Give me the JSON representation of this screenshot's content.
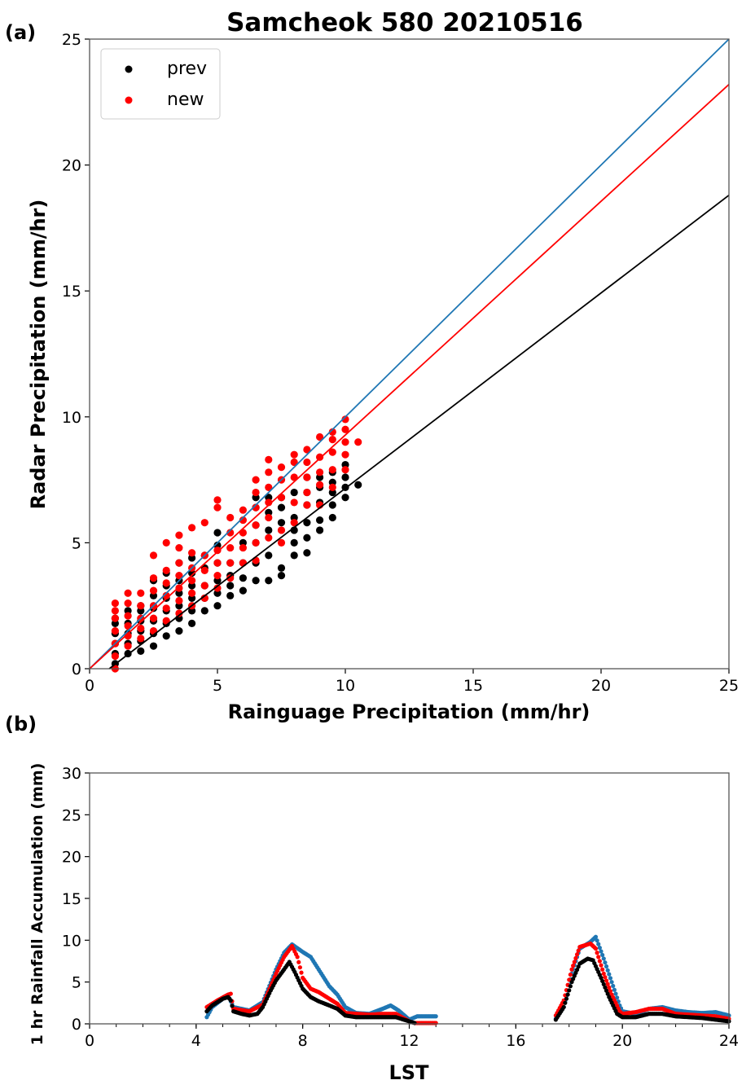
{
  "chart_data": [
    {
      "panel_label": "(a)",
      "type": "scatter",
      "title": "Samcheok 580 20210516",
      "xlabel": "Rainguage Precipitation (mm/hr)",
      "ylabel": "Radar Precipitation (mm/hr)",
      "xlim": [
        0,
        25
      ],
      "ylim": [
        0,
        25
      ],
      "xticks": [
        0,
        5,
        10,
        15,
        20,
        25
      ],
      "yticks": [
        0,
        5,
        10,
        15,
        20,
        25
      ],
      "grid": false,
      "legend": {
        "position": "top-left",
        "entries": [
          {
            "name": "prev",
            "color": "#000000"
          },
          {
            "name": "new",
            "color": "#ff0000"
          }
        ]
      },
      "series": [
        {
          "name": "prev",
          "color": "#000000",
          "columns": [
            {
              "x": 1,
              "y": [
                0.2,
                0.6,
                1.0,
                1.4,
                1.8,
                2.0
              ]
            },
            {
              "x": 1.5,
              "y": [
                0.6,
                1.0,
                1.4,
                1.8,
                2.3
              ]
            },
            {
              "x": 2,
              "y": [
                0.7,
                1.1,
                1.5,
                1.9,
                2.3,
                2.5
              ]
            },
            {
              "x": 2.5,
              "y": [
                0.9,
                1.4,
                1.9,
                2.4,
                2.9,
                3.5
              ]
            },
            {
              "x": 3,
              "y": [
                1.3,
                1.8,
                2.3,
                2.8,
                3.3,
                3.8
              ]
            },
            {
              "x": 3.5,
              "y": [
                1.5,
                2.0,
                2.5,
                3.0,
                3.5,
                4.2
              ]
            },
            {
              "x": 4,
              "y": [
                1.8,
                2.3,
                2.8,
                3.3,
                3.8,
                4.4
              ]
            },
            {
              "x": 4.5,
              "y": [
                2.3,
                2.8,
                3.3,
                4.0,
                4.5
              ]
            },
            {
              "x": 5,
              "y": [
                2.5,
                3.0,
                3.5,
                4.2,
                4.9,
                5.4
              ]
            },
            {
              "x": 5.5,
              "y": [
                2.9,
                3.3,
                3.7,
                4.2
              ]
            },
            {
              "x": 6,
              "y": [
                3.1,
                3.6,
                4.2,
                5.0
              ]
            },
            {
              "x": 6.5,
              "y": [
                3.5,
                4.2,
                5.0,
                5.7,
                6.4,
                6.8
              ]
            },
            {
              "x": 7,
              "y": [
                3.5,
                4.5,
                5.5,
                6.2,
                6.8
              ]
            },
            {
              "x": 7.5,
              "y": [
                3.7,
                4.0,
                5.8,
                6.4,
                6.8
              ]
            },
            {
              "x": 8,
              "y": [
                4.5,
                5.0,
                5.5,
                6.0,
                7.0
              ]
            },
            {
              "x": 8.5,
              "y": [
                4.6,
                5.2,
                5.8,
                6.5,
                7.0,
                7.6
              ]
            },
            {
              "x": 9,
              "y": [
                5.5,
                5.9,
                6.6,
                7.2,
                7.6
              ]
            },
            {
              "x": 9.5,
              "y": [
                6.0,
                6.5,
                7.0,
                7.4,
                7.8
              ]
            },
            {
              "x": 10,
              "y": [
                6.8,
                7.2,
                7.6,
                8.1
              ]
            },
            {
              "x": 10.5,
              "y": [
                7.3
              ]
            }
          ]
        },
        {
          "name": "new",
          "color": "#ff0000",
          "columns": [
            {
              "x": 1,
              "y": [
                0,
                0.5,
                1.0,
                1.5,
                2.0,
                2.3,
                2.6
              ]
            },
            {
              "x": 1.5,
              "y": [
                0.9,
                1.3,
                1.7,
                2.1,
                2.6,
                3.0
              ]
            },
            {
              "x": 2,
              "y": [
                1.2,
                1.6,
                2.0,
                2.5,
                3.0
              ]
            },
            {
              "x": 2.5,
              "y": [
                1.5,
                2.0,
                2.5,
                3.1,
                3.6,
                4.5
              ]
            },
            {
              "x": 3,
              "y": [
                1.9,
                2.4,
                2.9,
                3.4,
                3.9,
                5.0
              ]
            },
            {
              "x": 3.5,
              "y": [
                2.2,
                2.7,
                3.2,
                3.7,
                4.2,
                4.8,
                5.3
              ]
            },
            {
              "x": 4,
              "y": [
                2.5,
                3.0,
                3.5,
                4.0,
                4.6,
                5.6
              ]
            },
            {
              "x": 4.5,
              "y": [
                2.8,
                3.3,
                3.9,
                4.5,
                5.8
              ]
            },
            {
              "x": 5,
              "y": [
                3.2,
                3.7,
                4.2,
                4.7,
                6.4,
                6.7
              ]
            },
            {
              "x": 5.5,
              "y": [
                3.6,
                4.2,
                4.8,
                5.4,
                6.0
              ]
            },
            {
              "x": 6,
              "y": [
                4.2,
                4.8,
                5.4,
                5.9,
                6.3
              ]
            },
            {
              "x": 6.5,
              "y": [
                4.3,
                5.0,
                5.7,
                6.4,
                7.0,
                7.5
              ]
            },
            {
              "x": 7,
              "y": [
                5.2,
                6.0,
                6.6,
                7.2,
                7.8,
                8.3
              ]
            },
            {
              "x": 7.5,
              "y": [
                5.0,
                5.5,
                6.8,
                7.5,
                8.0
              ]
            },
            {
              "x": 8,
              "y": [
                5.8,
                6.6,
                7.6,
                8.2,
                8.5
              ]
            },
            {
              "x": 8.5,
              "y": [
                6.5,
                7.0,
                7.6,
                8.2,
                8.7
              ]
            },
            {
              "x": 9,
              "y": [
                6.5,
                7.3,
                7.8,
                8.4,
                9.2
              ]
            },
            {
              "x": 9.5,
              "y": [
                7.2,
                7.9,
                8.6,
                9.1,
                9.4
              ]
            },
            {
              "x": 10,
              "y": [
                7.9,
                8.5,
                9.0,
                9.5,
                9.9
              ]
            },
            {
              "x": 10.5,
              "y": [
                9.0
              ]
            }
          ]
        }
      ],
      "lines": [
        {
          "color": "#1f77b4",
          "x": [
            0,
            25
          ],
          "y": [
            0,
            25
          ]
        },
        {
          "color": "#ff0000",
          "x": [
            0,
            25
          ],
          "y": [
            0,
            23.2
          ]
        },
        {
          "color": "#000000",
          "x": [
            0.77,
            25
          ],
          "y": [
            0,
            18.8
          ]
        }
      ]
    },
    {
      "panel_label": "(b)",
      "type": "scatter",
      "xlabel": "LST",
      "ylabel": "1 hr Rainfall Accumulation (mm)",
      "xlim": [
        0,
        24
      ],
      "ylim": [
        0,
        30
      ],
      "xticks": [
        0,
        4,
        8,
        12,
        16,
        20,
        24
      ],
      "yticks": [
        0,
        5,
        10,
        15,
        20,
        25,
        30
      ],
      "grid": false,
      "series": [
        {
          "color": "#1f77b4",
          "segments": [
            [
              [
                4.4,
                0.8
              ],
              [
                4.6,
                2.0
              ],
              [
                5.0,
                3.0
              ],
              [
                5.2,
                3.4
              ],
              [
                5.4,
                2.0
              ],
              [
                6.0,
                1.6
              ],
              [
                6.5,
                2.6
              ],
              [
                7.0,
                6.5
              ],
              [
                7.3,
                8.5
              ],
              [
                7.6,
                9.5
              ],
              [
                8.0,
                8.6
              ],
              [
                8.3,
                8.0
              ],
              [
                8.6,
                6.5
              ],
              [
                9.0,
                4.5
              ],
              [
                9.3,
                3.5
              ],
              [
                9.6,
                2.0
              ],
              [
                10.0,
                1.3
              ],
              [
                10.5,
                1.2
              ],
              [
                11.0,
                1.8
              ],
              [
                11.3,
                2.2
              ],
              [
                11.6,
                1.6
              ],
              [
                12.0,
                0.5
              ],
              [
                12.3,
                0.9
              ],
              [
                13.0,
                0.9
              ]
            ],
            [
              [
                17.5,
                0.6
              ],
              [
                17.8,
                2.0
              ],
              [
                18.1,
                6.0
              ],
              [
                18.4,
                9.0
              ],
              [
                18.8,
                9.8
              ],
              [
                19.0,
                10.4
              ],
              [
                19.3,
                7.8
              ],
              [
                19.6,
                5.0
              ],
              [
                19.9,
                2.2
              ],
              [
                20.0,
                1.5
              ],
              [
                20.5,
                1.2
              ],
              [
                21.0,
                1.8
              ],
              [
                21.5,
                2.0
              ],
              [
                22.0,
                1.6
              ],
              [
                22.5,
                1.4
              ],
              [
                23.0,
                1.3
              ],
              [
                23.5,
                1.4
              ],
              [
                24.0,
                1.0
              ]
            ]
          ]
        },
        {
          "color": "#ff0000",
          "segments": [
            [
              [
                4.4,
                2.0
              ],
              [
                4.8,
                2.8
              ],
              [
                5.2,
                3.5
              ],
              [
                5.3,
                3.6
              ],
              [
                5.4,
                1.8
              ],
              [
                6.0,
                1.5
              ],
              [
                6.5,
                2.3
              ],
              [
                7.0,
                6.0
              ],
              [
                7.3,
                8.0
              ],
              [
                7.6,
                9.3
              ],
              [
                7.8,
                8.0
              ],
              [
                8.0,
                5.5
              ],
              [
                8.3,
                4.2
              ],
              [
                8.6,
                3.8
              ],
              [
                9.0,
                3.0
              ],
              [
                9.3,
                2.4
              ],
              [
                9.6,
                1.3
              ],
              [
                10.5,
                1.1
              ],
              [
                11.0,
                1.2
              ],
              [
                11.5,
                1.2
              ],
              [
                12.0,
                0.3
              ],
              [
                12.2,
                0.1
              ],
              [
                13.0,
                0.1
              ]
            ],
            [
              [
                17.5,
                1.0
              ],
              [
                17.8,
                2.8
              ],
              [
                18.1,
                6.5
              ],
              [
                18.4,
                9.2
              ],
              [
                18.8,
                9.6
              ],
              [
                19.0,
                9.0
              ],
              [
                19.3,
                6.0
              ],
              [
                19.6,
                3.5
              ],
              [
                19.9,
                1.5
              ],
              [
                20.0,
                1.2
              ],
              [
                20.5,
                1.4
              ],
              [
                21.0,
                1.8
              ],
              [
                21.5,
                1.8
              ],
              [
                22.0,
                1.2
              ],
              [
                22.5,
                1.1
              ],
              [
                23.0,
                1.0
              ],
              [
                23.5,
                0.9
              ],
              [
                24.0,
                0.6
              ]
            ]
          ]
        },
        {
          "color": "#000000",
          "segments": [
            [
              [
                4.4,
                1.5
              ],
              [
                4.6,
                2.2
              ],
              [
                4.8,
                2.6
              ],
              [
                5.0,
                3.0
              ],
              [
                5.2,
                3.2
              ],
              [
                5.3,
                2.8
              ],
              [
                5.4,
                1.5
              ],
              [
                5.7,
                1.2
              ],
              [
                6.0,
                1.0
              ],
              [
                6.3,
                1.2
              ],
              [
                6.5,
                2.0
              ],
              [
                6.8,
                4.0
              ],
              [
                7.0,
                5.2
              ],
              [
                7.3,
                6.5
              ],
              [
                7.5,
                7.4
              ],
              [
                7.7,
                6.2
              ],
              [
                8.0,
                4.2
              ],
              [
                8.3,
                3.2
              ],
              [
                8.6,
                2.7
              ],
              [
                9.0,
                2.2
              ],
              [
                9.3,
                1.8
              ],
              [
                9.6,
                1.0
              ],
              [
                10.0,
                0.8
              ],
              [
                11.5,
                0.8
              ],
              [
                11.8,
                0.5
              ],
              [
                12.2,
                0.1
              ]
            ],
            [
              [
                17.5,
                0.5
              ],
              [
                17.8,
                2.0
              ],
              [
                18.1,
                5.0
              ],
              [
                18.4,
                7.2
              ],
              [
                18.7,
                7.8
              ],
              [
                18.9,
                7.6
              ],
              [
                19.2,
                5.5
              ],
              [
                19.5,
                3.2
              ],
              [
                19.8,
                1.2
              ],
              [
                20.0,
                0.8
              ],
              [
                20.5,
                0.8
              ],
              [
                21.0,
                1.2
              ],
              [
                21.5,
                1.2
              ],
              [
                22.0,
                0.9
              ],
              [
                22.5,
                0.8
              ],
              [
                23.0,
                0.7
              ],
              [
                23.5,
                0.5
              ],
              [
                24.0,
                0.3
              ]
            ]
          ]
        }
      ]
    }
  ]
}
